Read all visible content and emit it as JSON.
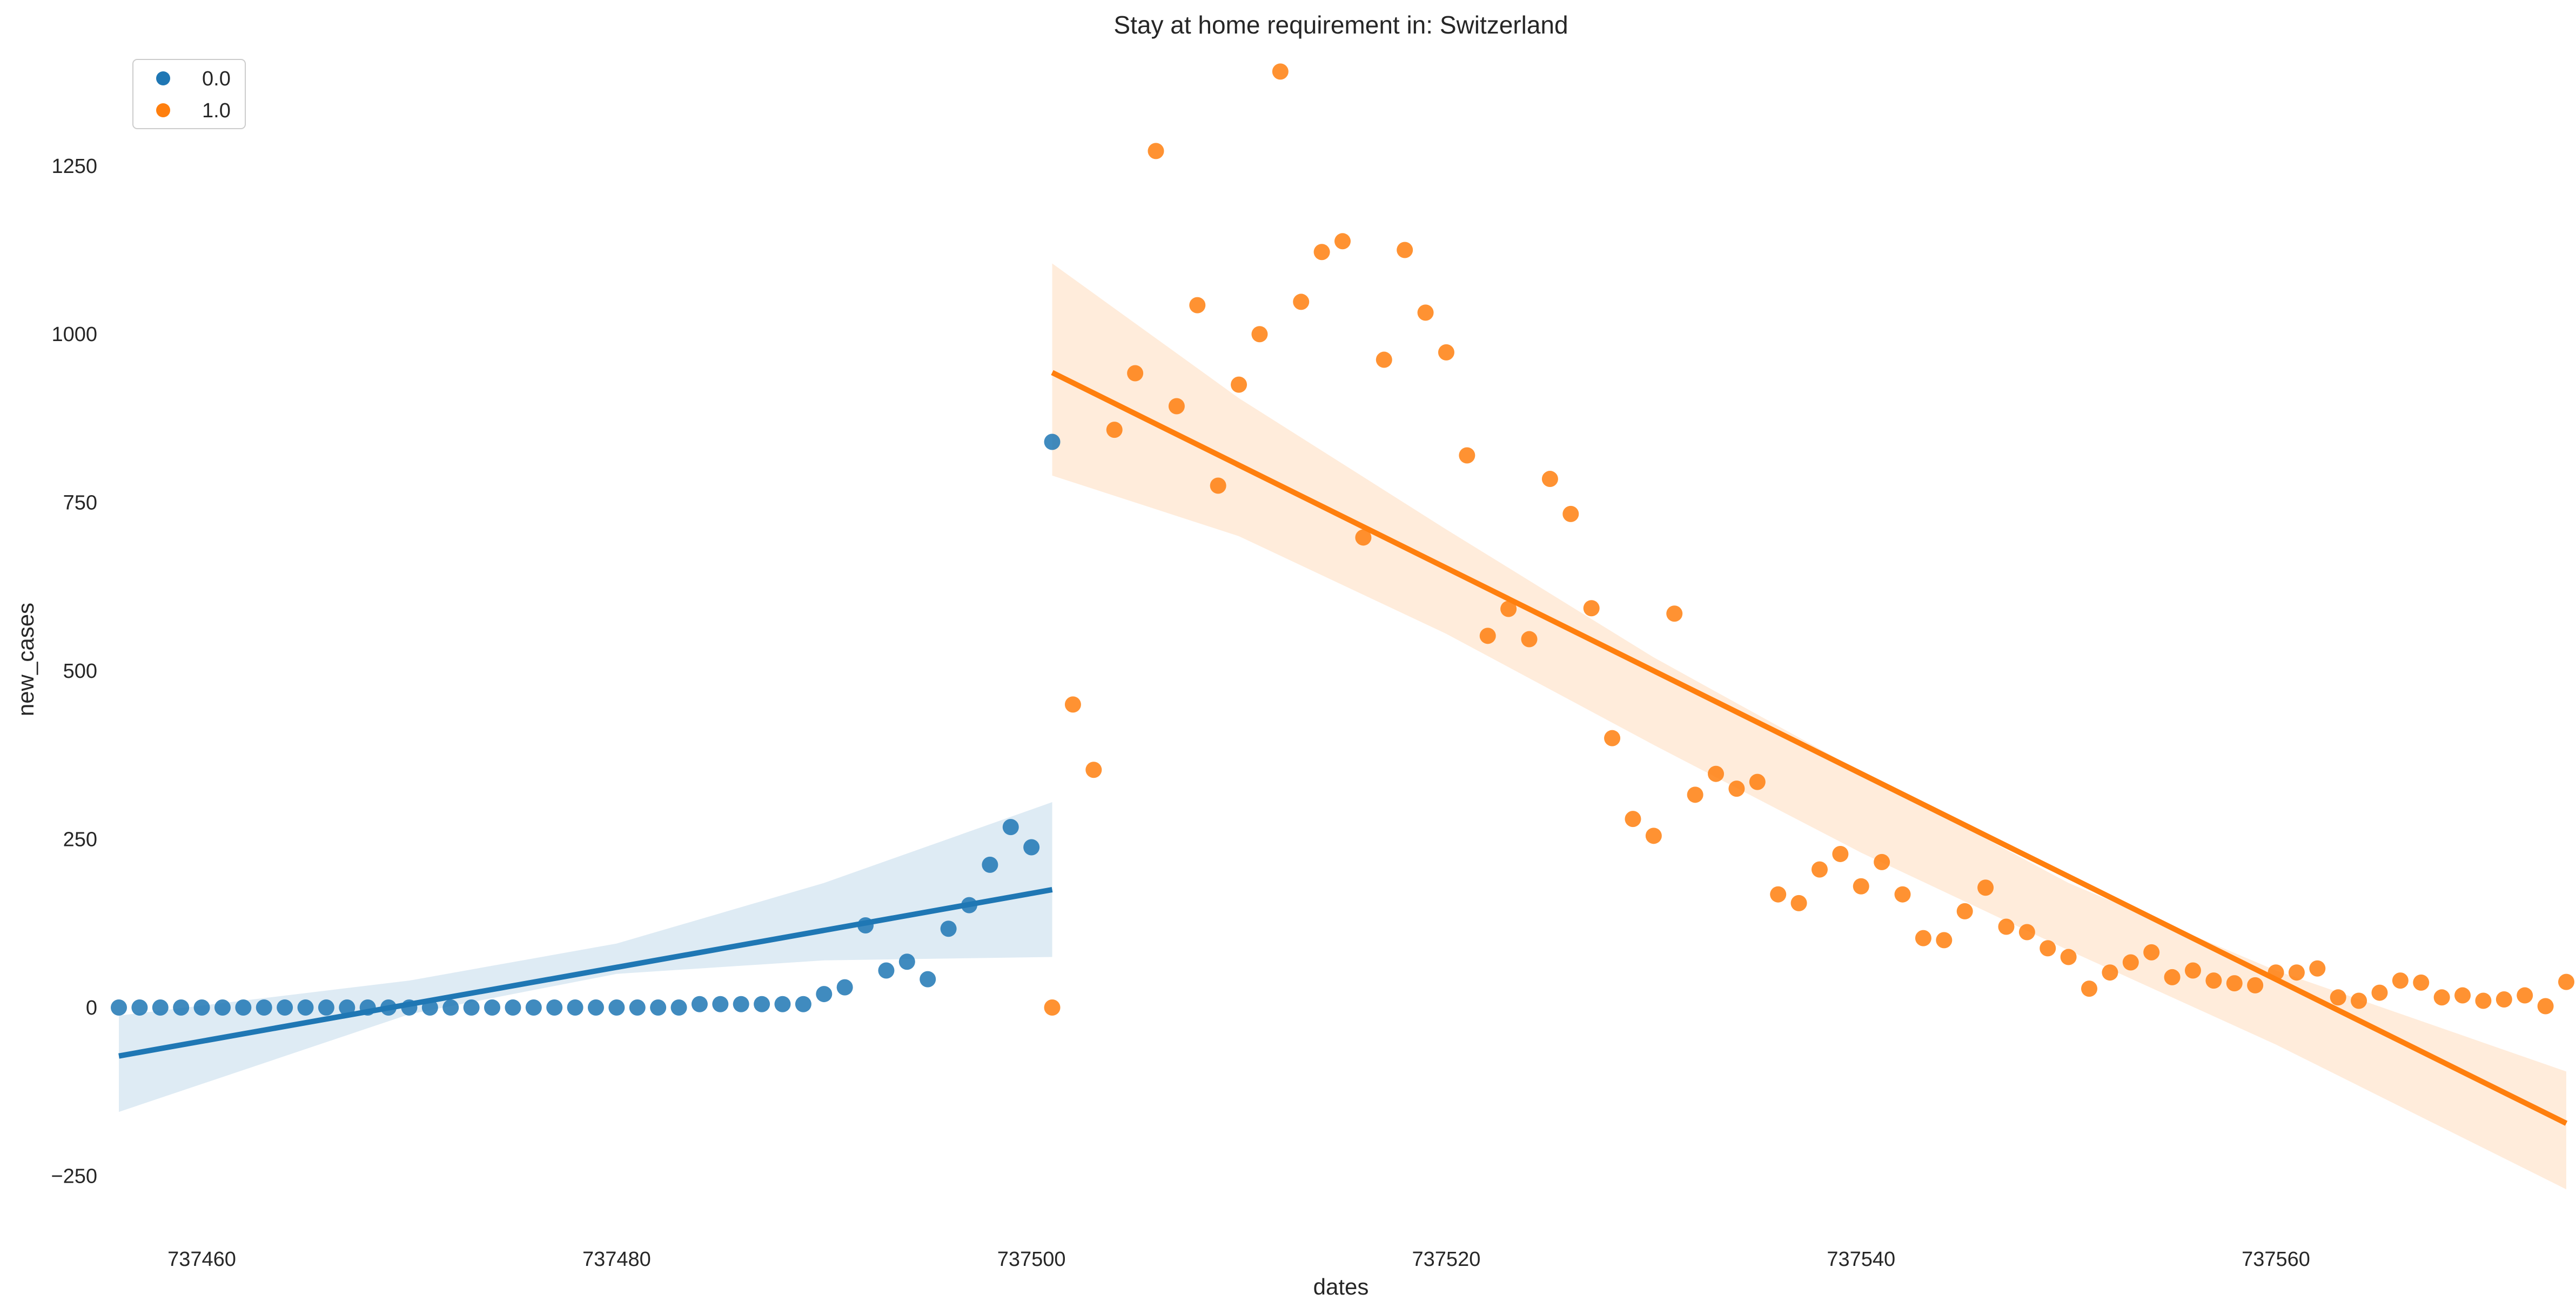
{
  "chart_data": {
    "type": "scatter",
    "title": "Stay at home requirement in: Switzerland",
    "xlabel": "dates",
    "ylabel": "new_cases",
    "xlim": [
      737456,
      737574
    ],
    "ylim": [
      -350,
      1420
    ],
    "x_ticks": [
      737460,
      737480,
      737500,
      737520,
      737540,
      737560
    ],
    "y_ticks": [
      -250,
      0,
      250,
      500,
      750,
      1000,
      1250
    ],
    "x_tick_labels": [
      "737460",
      "737480",
      "737500",
      "737520",
      "737540",
      "737560"
    ],
    "y_tick_labels": [
      "−250",
      "0",
      "250",
      "500",
      "750",
      "1000",
      "1250"
    ],
    "grid": false,
    "legend_position": "top-left",
    "series": [
      {
        "name": "0.0",
        "color": "#1f77b4",
        "points": [
          [
            737456,
            0
          ],
          [
            737457,
            0
          ],
          [
            737458,
            0
          ],
          [
            737459,
            0
          ],
          [
            737460,
            0
          ],
          [
            737461,
            0
          ],
          [
            737462,
            0
          ],
          [
            737463,
            0
          ],
          [
            737464,
            0
          ],
          [
            737465,
            0
          ],
          [
            737466,
            0
          ],
          [
            737467,
            0
          ],
          [
            737468,
            0
          ],
          [
            737469,
            0
          ],
          [
            737470,
            0
          ],
          [
            737471,
            0
          ],
          [
            737472,
            0
          ],
          [
            737473,
            0
          ],
          [
            737474,
            0
          ],
          [
            737475,
            0
          ],
          [
            737476,
            0
          ],
          [
            737477,
            0
          ],
          [
            737478,
            0
          ],
          [
            737479,
            0
          ],
          [
            737480,
            0
          ],
          [
            737481,
            0
          ],
          [
            737482,
            0
          ],
          [
            737483,
            0
          ],
          [
            737484,
            5
          ],
          [
            737485,
            5
          ],
          [
            737486,
            5
          ],
          [
            737487,
            5
          ],
          [
            737488,
            5
          ],
          [
            737489,
            5
          ],
          [
            737490,
            20
          ],
          [
            737491,
            30
          ],
          [
            737492,
            122
          ],
          [
            737493,
            55
          ],
          [
            737494,
            68
          ],
          [
            737495,
            42
          ],
          [
            737496,
            117
          ],
          [
            737497,
            152
          ],
          [
            737498,
            212
          ],
          [
            737499,
            268
          ],
          [
            737500,
            238
          ],
          [
            737501,
            840
          ]
        ],
        "regression": {
          "x": [
            737456,
            737501
          ],
          "y": [
            -72,
            175
          ]
        },
        "ci_upper": [
          [
            737456,
            -12
          ],
          [
            737470,
            40
          ],
          [
            737480,
            95
          ],
          [
            737490,
            185
          ],
          [
            737501,
            305
          ]
        ],
        "ci_lower": [
          [
            737456,
            -155
          ],
          [
            737470,
            -10
          ],
          [
            737480,
            50
          ],
          [
            737490,
            70
          ],
          [
            737501,
            75
          ]
        ]
      },
      {
        "name": "1.0",
        "color": "#ff7f0e",
        "points": [
          [
            737501,
            0
          ],
          [
            737502,
            450
          ],
          [
            737503,
            353
          ],
          [
            737504,
            858
          ],
          [
            737505,
            942
          ],
          [
            737506,
            1272
          ],
          [
            737507,
            893
          ],
          [
            737508,
            1043
          ],
          [
            737509,
            775
          ],
          [
            737510,
            925
          ],
          [
            737511,
            1000
          ],
          [
            737512,
            1390
          ],
          [
            737513,
            1048
          ],
          [
            737514,
            1122
          ],
          [
            737515,
            1138
          ],
          [
            737516,
            698
          ],
          [
            737517,
            962
          ],
          [
            737518,
            1125
          ],
          [
            737519,
            1032
          ],
          [
            737520,
            973
          ],
          [
            737521,
            820
          ],
          [
            737522,
            552
          ],
          [
            737523,
            592
          ],
          [
            737524,
            547
          ],
          [
            737525,
            785
          ],
          [
            737526,
            733
          ],
          [
            737527,
            593
          ],
          [
            737528,
            400
          ],
          [
            737529,
            280
          ],
          [
            737530,
            255
          ],
          [
            737531,
            585
          ],
          [
            737532,
            316
          ],
          [
            737533,
            347
          ],
          [
            737534,
            325
          ],
          [
            737535,
            335
          ],
          [
            737536,
            168
          ],
          [
            737537,
            155
          ],
          [
            737538,
            205
          ],
          [
            737539,
            228
          ],
          [
            737540,
            180
          ],
          [
            737541,
            216
          ],
          [
            737542,
            168
          ],
          [
            737543,
            103
          ],
          [
            737544,
            100
          ],
          [
            737545,
            143
          ],
          [
            737546,
            178
          ],
          [
            737547,
            120
          ],
          [
            737548,
            112
          ],
          [
            737549,
            88
          ],
          [
            737550,
            75
          ],
          [
            737551,
            28
          ],
          [
            737552,
            52
          ],
          [
            737553,
            67
          ],
          [
            737554,
            82
          ],
          [
            737555,
            45
          ],
          [
            737556,
            55
          ],
          [
            737557,
            40
          ],
          [
            737558,
            36
          ],
          [
            737559,
            33
          ],
          [
            737560,
            52
          ],
          [
            737561,
            52
          ],
          [
            737562,
            58
          ],
          [
            737563,
            15
          ],
          [
            737564,
            10
          ],
          [
            737565,
            22
          ],
          [
            737566,
            40
          ],
          [
            737567,
            37
          ],
          [
            737568,
            15
          ],
          [
            737569,
            18
          ],
          [
            737570,
            10
          ],
          [
            737571,
            12
          ],
          [
            737572,
            18
          ],
          [
            737573,
            2
          ],
          [
            737574,
            38
          ]
        ],
        "regression": {
          "x": [
            737501,
            737574
          ],
          "y": [
            943,
            -172
          ]
        },
        "ci_upper": [
          [
            737501,
            1105
          ],
          [
            737510,
            905
          ],
          [
            737520,
            710
          ],
          [
            737530,
            520
          ],
          [
            737540,
            350
          ],
          [
            737550,
            185
          ],
          [
            737560,
            55
          ],
          [
            737574,
            -95
          ]
        ],
        "ci_lower": [
          [
            737501,
            790
          ],
          [
            737510,
            700
          ],
          [
            737520,
            555
          ],
          [
            737530,
            390
          ],
          [
            737540,
            230
          ],
          [
            737550,
            85
          ],
          [
            737560,
            -55
          ],
          [
            737574,
            -270
          ]
        ]
      }
    ]
  }
}
